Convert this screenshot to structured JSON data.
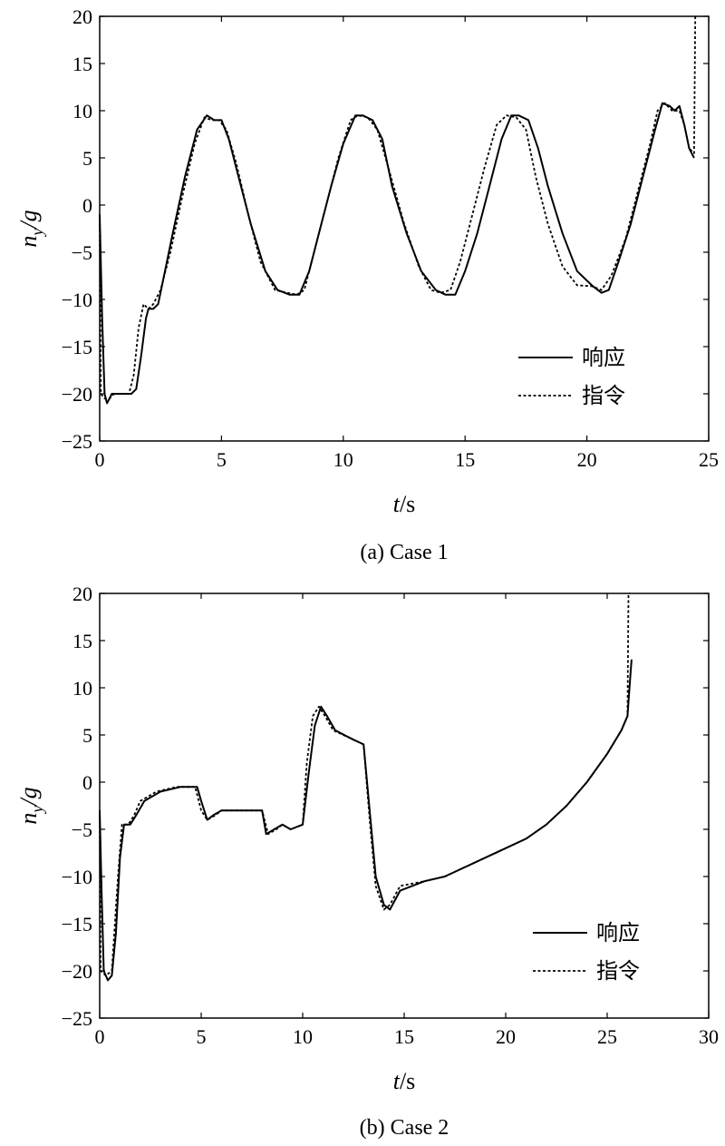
{
  "chart_data": [
    {
      "type": "line",
      "caption": "(a) Case 1",
      "xlabel": "t/s",
      "xlabel_var": "t",
      "xlabel_unit": "/s",
      "ylabel": "n_y/g",
      "ylabel_var": "n",
      "ylabel_sub": "y",
      "ylabel_unit": "/g",
      "xlim": [
        0,
        25
      ],
      "ylim": [
        -25,
        20
      ],
      "xticks": [
        "0",
        "5",
        "10",
        "15",
        "20",
        "25"
      ],
      "yticks": [
        "20",
        "15",
        "10",
        "5",
        "0",
        "−5",
        "−10",
        "−15",
        "−20",
        "−25"
      ],
      "grid": false,
      "legend_position": "lower-right",
      "series": [
        {
          "name": "响应",
          "style": "solid",
          "x": [
            0,
            0.1,
            0.2,
            0.3,
            0.4,
            0.5,
            0.7,
            1.0,
            1.3,
            1.5,
            1.7,
            1.9,
            2.0,
            2.2,
            2.4,
            2.6,
            3.0,
            3.5,
            4.0,
            4.4,
            4.7,
            5.0,
            5.3,
            5.7,
            6.2,
            6.8,
            7.3,
            7.8,
            8.2,
            8.6,
            9.0,
            9.5,
            10.0,
            10.5,
            10.8,
            11.2,
            11.6,
            12.0,
            12.6,
            13.2,
            13.8,
            14.2,
            14.6,
            15.0,
            15.5,
            16.0,
            16.5,
            16.9,
            17.2,
            17.6,
            18.0,
            18.4,
            19.0,
            19.6,
            20.2,
            20.6,
            20.9,
            21.3,
            21.8,
            22.3,
            22.8,
            23.1,
            23.4,
            23.6,
            23.8,
            24.0,
            24.2,
            24.4
          ],
          "y": [
            -1,
            -12,
            -20,
            -21,
            -20.5,
            -20,
            -20,
            -20,
            -20,
            -19.5,
            -16,
            -12,
            -11,
            -11,
            -10.5,
            -8,
            -3,
            3,
            8,
            9.5,
            9,
            9,
            7,
            3,
            -2,
            -7,
            -9,
            -9.5,
            -9.5,
            -7,
            -3,
            2,
            6.5,
            9.5,
            9.5,
            9,
            7,
            2,
            -3,
            -7,
            -9,
            -9.5,
            -9.5,
            -7,
            -3,
            2,
            7,
            9.5,
            9.5,
            9,
            6,
            2,
            -3,
            -7,
            -8.5,
            -9.3,
            -9,
            -6,
            -2,
            3,
            8,
            10.8,
            10.5,
            10,
            10.5,
            8.5,
            6,
            5
          ]
        },
        {
          "name": "指令",
          "style": "dashed",
          "x": [
            0,
            0.05,
            0.2,
            0.4,
            0.6,
            0.9,
            1.2,
            1.4,
            1.6,
            1.8,
            2.0,
            2.2,
            2.5,
            2.9,
            3.4,
            3.9,
            4.3,
            4.6,
            4.9,
            5.2,
            5.6,
            6.1,
            6.6,
            7.2,
            7.7,
            8.1,
            8.4,
            8.8,
            9.3,
            9.8,
            10.3,
            10.6,
            11.0,
            11.4,
            11.9,
            12.5,
            13.1,
            13.6,
            14.0,
            14.4,
            14.8,
            15.3,
            15.8,
            16.3,
            16.7,
            17.1,
            17.5,
            17.9,
            18.4,
            19.0,
            19.6,
            20.2,
            20.6,
            21.0,
            21.6,
            22.1,
            22.6,
            22.9,
            23.2,
            23.5,
            23.8,
            24.0,
            24.2,
            24.4,
            24.45,
            24.5
          ],
          "y": [
            -1,
            -20,
            -20.5,
            -20.5,
            -20,
            -20,
            -20,
            -18,
            -13,
            -10.5,
            -11,
            -10.5,
            -9,
            -5,
            1,
            6.5,
            9.3,
            9,
            9,
            8,
            4.5,
            -1,
            -6,
            -9,
            -9.3,
            -9.5,
            -9,
            -5,
            0,
            5,
            9,
            9.5,
            9.3,
            8,
            3.5,
            -2,
            -6.5,
            -9,
            -9.3,
            -9,
            -6,
            -1,
            4,
            8.5,
            9.5,
            9.3,
            8,
            3,
            -2,
            -6.5,
            -8.5,
            -8.6,
            -9,
            -7.5,
            -3.5,
            1.5,
            6.5,
            10,
            10.8,
            10,
            10,
            8.5,
            6,
            5.5,
            20,
            20
          ]
        }
      ]
    },
    {
      "type": "line",
      "caption": "(b) Case 2",
      "xlabel": "t/s",
      "xlabel_var": "t",
      "xlabel_unit": "/s",
      "ylabel": "n_y/g",
      "ylabel_var": "n",
      "ylabel_sub": "y",
      "ylabel_unit": "/g",
      "xlim": [
        0,
        30
      ],
      "ylim": [
        -25,
        20
      ],
      "xticks": [
        "0",
        "5",
        "10",
        "15",
        "20",
        "25",
        "30"
      ],
      "yticks": [
        "20",
        "15",
        "10",
        "5",
        "0",
        "−5",
        "−10",
        "−15",
        "−20",
        "−25"
      ],
      "grid": false,
      "legend_position": "lower-right",
      "series": [
        {
          "name": "响应",
          "style": "solid",
          "x": [
            0,
            0.1,
            0.2,
            0.4,
            0.6,
            0.8,
            1.0,
            1.2,
            1.5,
            1.8,
            2.2,
            3.0,
            4.0,
            4.8,
            5.0,
            5.3,
            5.6,
            6.0,
            7.0,
            8.0,
            8.2,
            8.6,
            9.0,
            9.4,
            10.0,
            10.3,
            10.6,
            10.9,
            11.2,
            11.6,
            12.5,
            13.0,
            13.3,
            13.6,
            14.0,
            14.3,
            14.8,
            16.0,
            17.0,
            18.0,
            19.0,
            20.0,
            21.0,
            22.0,
            23.0,
            24.0,
            25.0,
            25.7,
            26.0,
            26.1,
            26.2
          ],
          "y": [
            -3,
            -12,
            -20,
            -21,
            -20.5,
            -16,
            -8,
            -4.5,
            -4.5,
            -3.5,
            -2,
            -1,
            -0.5,
            -0.5,
            -2,
            -4,
            -3.5,
            -3,
            -3,
            -3,
            -5.5,
            -5,
            -4.5,
            -5,
            -4.5,
            1,
            6,
            8,
            7,
            5.5,
            4.5,
            4,
            -3,
            -10,
            -13,
            -13.5,
            -11.5,
            -10.5,
            -10,
            -9,
            -8,
            -7,
            -6,
            -4.5,
            -2.5,
            0,
            3,
            5.5,
            7,
            10,
            13
          ]
        },
        {
          "name": "指令",
          "style": "dashed",
          "x": [
            0,
            0.05,
            0.3,
            0.6,
            0.9,
            1.1,
            1.4,
            1.7,
            2.0,
            2.8,
            3.8,
            4.7,
            5.0,
            5.3,
            5.7,
            6.0,
            7.0,
            8.0,
            8.3,
            8.7,
            9.0,
            9.4,
            10.0,
            10.2,
            10.5,
            10.8,
            11.1,
            11.5,
            12.5,
            13.0,
            13.3,
            13.6,
            14.0,
            14.3,
            14.8,
            16.0,
            17.0,
            18.0,
            19.0,
            20.0,
            21.0,
            22.0,
            23.0,
            24.0,
            25.0,
            25.7,
            26.0,
            26.05,
            26.1
          ],
          "y": [
            -3,
            -20,
            -20.5,
            -20,
            -10,
            -4.5,
            -4.5,
            -3.5,
            -2,
            -1,
            -0.5,
            -0.5,
            -3,
            -4,
            -3.5,
            -3,
            -3,
            -3,
            -5.5,
            -5,
            -4.5,
            -5,
            -4.5,
            2,
            7,
            8,
            7,
            5.5,
            4.5,
            4,
            -4,
            -11,
            -13.5,
            -13,
            -11,
            -10.5,
            -10,
            -9,
            -8,
            -7,
            -6,
            -4.5,
            -2.5,
            0,
            3,
            5.5,
            7,
            20,
            20
          ]
        }
      ]
    }
  ]
}
